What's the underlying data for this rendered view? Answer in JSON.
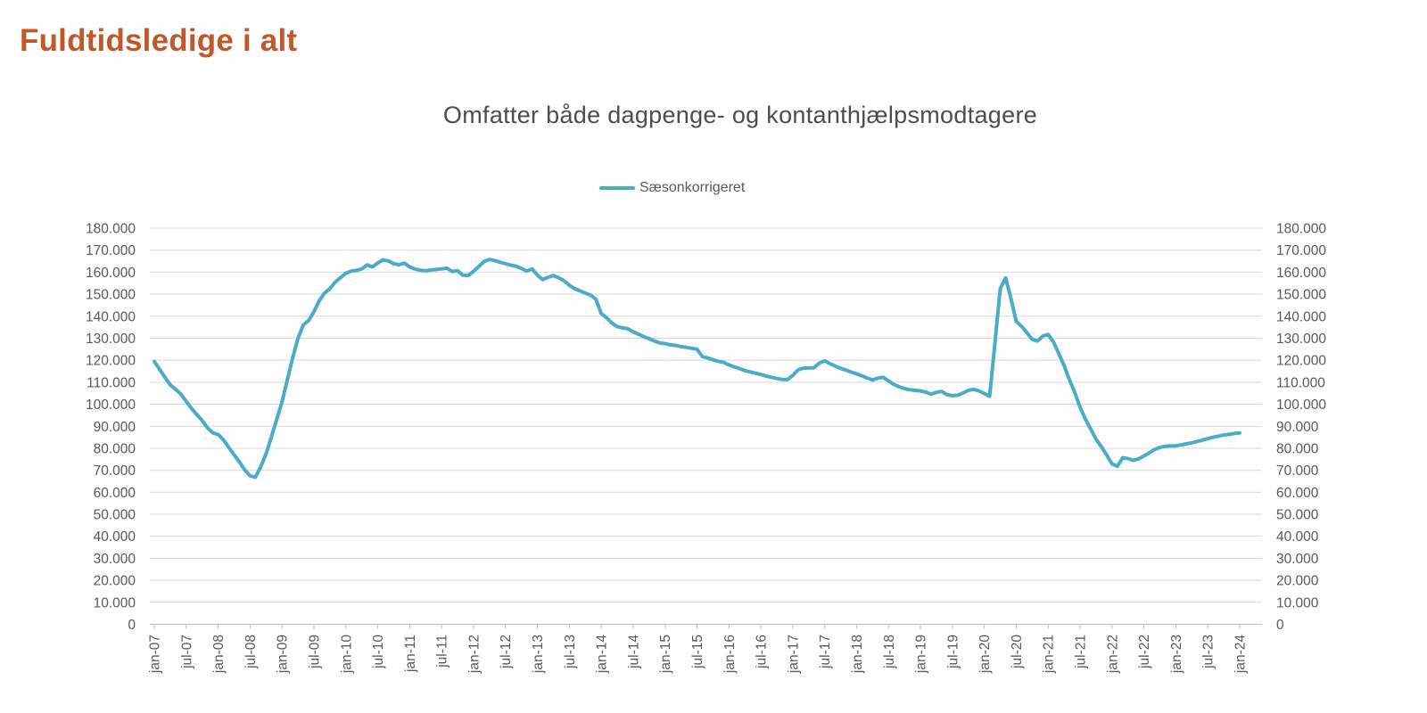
{
  "title": "Fuldtidsledige i alt",
  "colors": {
    "title": "#C0582A",
    "subtitle": "#4D4D4D",
    "axis_text": "#595959",
    "gridline": "#D9D9D9",
    "axis_line": "#BFBFBF"
  },
  "chart_data": {
    "type": "line",
    "title": "Omfatter både dagpenge- og kontanthjælpsmodtagere",
    "legend_position": "top",
    "grid": true,
    "x_unit": "month",
    "x_range_start": "jan-07",
    "x_range_end": "jan-24",
    "x_tick_every": 6,
    "x_tick_labels": [
      "jan-07",
      "jul-07",
      "jan-08",
      "jul-08",
      "jan-09",
      "jul-09",
      "jan-10",
      "jul-10",
      "jan-11",
      "jul-11",
      "jan-12",
      "jul-12",
      "jan-13",
      "jul-13",
      "jan-14",
      "jul-14",
      "jan-15",
      "jul-15",
      "jan-16",
      "jul-16",
      "jan-17",
      "jul-17",
      "jan-18",
      "jul-18",
      "jan-19",
      "jul-19",
      "jan-20",
      "jul-20",
      "jan-21",
      "jul-21",
      "jan-22",
      "jul-22",
      "jan-23",
      "jul-23",
      "jan-24"
    ],
    "ylim": [
      0,
      180000
    ],
    "y_tick_step": 10000,
    "y_tick_labels": [
      "0",
      "10.000",
      "20.000",
      "30.000",
      "40.000",
      "50.000",
      "60.000",
      "70.000",
      "80.000",
      "90.000",
      "100.000",
      "110.000",
      "120.000",
      "130.000",
      "140.000",
      "150.000",
      "160.000",
      "170.000",
      "180.000"
    ],
    "y_axis_right": true,
    "series": [
      {
        "name": "Sæsonkorrigeret",
        "color": "#4BACC6",
        "values": [
          119400,
          115800,
          112200,
          108800,
          106800,
          104600,
          101300,
          98000,
          95300,
          92600,
          89200,
          87000,
          86200,
          83800,
          80400,
          77000,
          73700,
          70200,
          67500,
          66800,
          71500,
          77500,
          85000,
          93000,
          101000,
          111000,
          121000,
          130000,
          136000,
          138000,
          142000,
          147000,
          150500,
          152500,
          155500,
          157500,
          159500,
          160500,
          160800,
          161500,
          163300,
          162400,
          164200,
          165600,
          165100,
          163900,
          163400,
          164100,
          162400,
          161400,
          160900,
          160600,
          161000,
          161200,
          161500,
          161800,
          160300,
          160700,
          158600,
          158500,
          160400,
          162600,
          164900,
          165800,
          165300,
          164500,
          163900,
          163200,
          162700,
          161700,
          160500,
          161500,
          158700,
          156600,
          157700,
          158500,
          157500,
          156100,
          154100,
          152500,
          151500,
          150500,
          149600,
          147700,
          141200,
          139300,
          136900,
          135300,
          134700,
          134300,
          132900,
          131800,
          130700,
          129800,
          128700,
          127900,
          127500,
          127000,
          126700,
          126200,
          125800,
          125400,
          125000,
          121700,
          121000,
          120200,
          119500,
          119000,
          117900,
          117000,
          116200,
          115300,
          114700,
          114100,
          113500,
          112800,
          112200,
          111700,
          111300,
          111200,
          113100,
          115600,
          116400,
          116500,
          116600,
          118700,
          119700,
          118400,
          117300,
          116300,
          115500,
          114600,
          113800,
          112900,
          111900,
          111000,
          111900,
          112200,
          110500,
          109000,
          107900,
          107100,
          106600,
          106300,
          106000,
          105500,
          104600,
          105400,
          105800,
          104300,
          103900,
          104100,
          105100,
          106300,
          106800,
          106000,
          104900,
          103600,
          128000,
          152500,
          157400,
          148000,
          137700,
          135400,
          132500,
          129500,
          128700,
          131000,
          131700,
          128300,
          123000,
          117500,
          111100,
          105300,
          98700,
          93200,
          88700,
          84100,
          80700,
          76900,
          72900,
          71800,
          75700,
          75300,
          74500,
          75200,
          76500,
          77900,
          79400,
          80400,
          80900,
          81100,
          81100,
          81500,
          82000,
          82500,
          83100,
          83700,
          84400,
          85000,
          85500,
          86000,
          86300,
          86700,
          87000
        ]
      }
    ]
  }
}
